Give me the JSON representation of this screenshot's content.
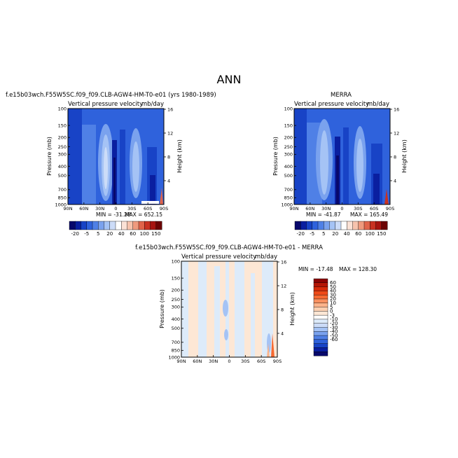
{
  "figure_title": "ANN",
  "colors": {
    "model_ramp": [
      "#08086b",
      "#0a1fa0",
      "#1843c6",
      "#2f62dc",
      "#4f80e6",
      "#7aa2ee",
      "#a5c3f5",
      "#ccdcf8",
      "#ffffff",
      "#fbe2d6",
      "#f7c3ad",
      "#ef9a7e",
      "#e0644a",
      "#c83222",
      "#a61410",
      "#6b0404"
    ],
    "diff_ramp": [
      "#08086b",
      "#0a1fa0",
      "#1843c6",
      "#2f62dc",
      "#4f80e6",
      "#7aa2ee",
      "#a5c3f5",
      "#ccdcf8",
      "#ddebfa",
      "#ffffff",
      "#fde7d5",
      "#fccfb0",
      "#fbb38a",
      "#f99160",
      "#f76a32",
      "#ee4a18",
      "#d72b0a",
      "#b41606",
      "#8c0404"
    ]
  },
  "chart_data": [
    {
      "type": "heatmap",
      "id": "model",
      "title": "f.e15b03wch.F55W5SC.f09_f09.CLB-AGW4-HM-T0-e01 (yrs 1980-1989)",
      "left_subtitle": "Vertical pressure velocity",
      "right_subtitle": "mb/day",
      "xlabel": "",
      "ylabel": "Pressure (mb)",
      "y2label": "Height (km)",
      "x_ticks": [
        "90N",
        "60N",
        "30N",
        "0",
        "30S",
        "60S",
        "90S"
      ],
      "y_ticks": [
        "100",
        "150",
        "200",
        "250",
        "300",
        "400",
        "500",
        "700",
        "850",
        "1000"
      ],
      "y2_ticks": [
        "16",
        "12",
        "8",
        "4"
      ],
      "min_label": "MIN = -31.28",
      "max_label": "MAX = 652.15",
      "colorbar_labels": [
        "-20",
        "-5",
        "5",
        "20",
        "40",
        "60",
        "100",
        "150"
      ]
    },
    {
      "type": "heatmap",
      "id": "obs",
      "title": "MERRA",
      "left_subtitle": "Vertical pressure velocity",
      "right_subtitle": "mb/day",
      "xlabel": "",
      "ylabel": "Pressure (mb)",
      "y2label": "Height (km)",
      "x_ticks": [
        "90N",
        "60N",
        "30N",
        "0",
        "30S",
        "60S",
        "90S"
      ],
      "y_ticks": [
        "100",
        "150",
        "200",
        "250",
        "300",
        "400",
        "500",
        "700",
        "850",
        "1000"
      ],
      "y2_ticks": [
        "16",
        "12",
        "8",
        "4"
      ],
      "min_label": "MIN = -41.87",
      "max_label": "MAX = 165.49",
      "colorbar_labels": [
        "-20",
        "-5",
        "5",
        "20",
        "40",
        "60",
        "100",
        "150"
      ]
    },
    {
      "type": "heatmap",
      "id": "diff",
      "title": "f.e15b03wch.F55W5SC.f09_f09.CLB-AGW4-HM-T0-e01 - MERRA",
      "left_subtitle": "Vertical pressure velocity",
      "right_subtitle": "mb/day",
      "xlabel": "",
      "ylabel": "Pressure (mb)",
      "y2label": "Height (km)",
      "x_ticks": [
        "90N",
        "60N",
        "30N",
        "0",
        "30S",
        "60S",
        "90S"
      ],
      "y_ticks": [
        "100",
        "150",
        "200",
        "250",
        "300",
        "400",
        "500",
        "700",
        "850",
        "1000"
      ],
      "y2_ticks": [
        "16",
        "12",
        "8",
        "4"
      ],
      "min_label": "MIN = -17.48",
      "max_label": "MAX = 128.30",
      "colorbar_labels": [
        "60",
        "50",
        "40",
        "30",
        "20",
        "10",
        "5",
        "0",
        "-3",
        "-10",
        "-20",
        "-30",
        "-40",
        "-50",
        "-60"
      ]
    }
  ]
}
